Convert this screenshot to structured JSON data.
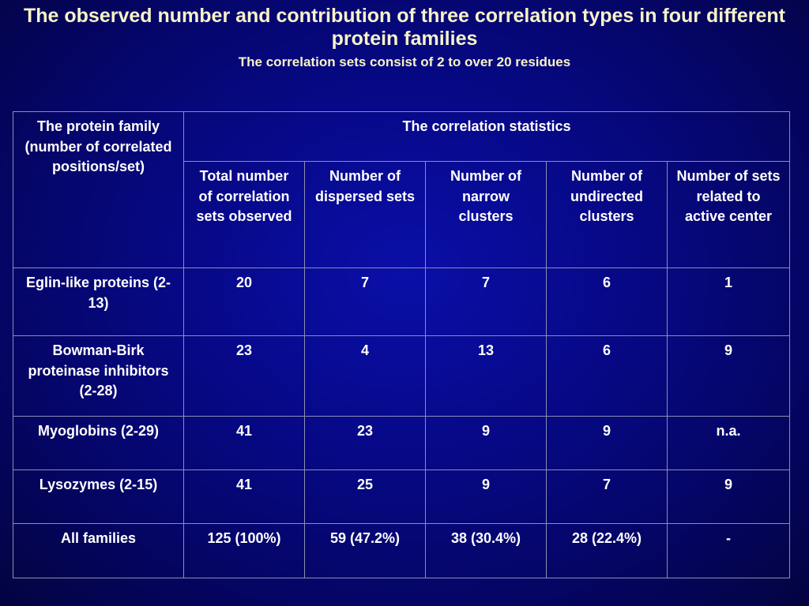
{
  "title": "The observed number and contribution of three correlation types in four different protein families",
  "subtitle": "The correlation sets consist of 2 to over 20 residues",
  "table": {
    "family_header": "The protein family (number of correlated positions/set)",
    "stats_header": "The correlation statistics",
    "columns": [
      "Total number of correlation sets observed",
      "Number of dispersed sets",
      "Number of narrow clusters",
      "Number of undirected clusters",
      "Number of sets related to active center"
    ],
    "rows": [
      {
        "family": "Eglin-like proteins (2-13)",
        "values": [
          "20",
          "7",
          "7",
          "6",
          "1"
        ]
      },
      {
        "family": "Bowman-Birk proteinase inhibitors (2-28)",
        "values": [
          "23",
          "4",
          "13",
          "6",
          "9"
        ]
      },
      {
        "family": "Myoglobins (2-29)",
        "values": [
          "41",
          "23",
          "9",
          "9",
          "n.a."
        ]
      },
      {
        "family": "Lysozymes (2-15)",
        "values": [
          "41",
          "25",
          "9",
          "7",
          "9"
        ]
      },
      {
        "family": "All families",
        "values": [
          "125 (100%)",
          "59 (47.2%)",
          "38 (30.4%)",
          "28 (22.4%)",
          "-"
        ]
      }
    ]
  }
}
